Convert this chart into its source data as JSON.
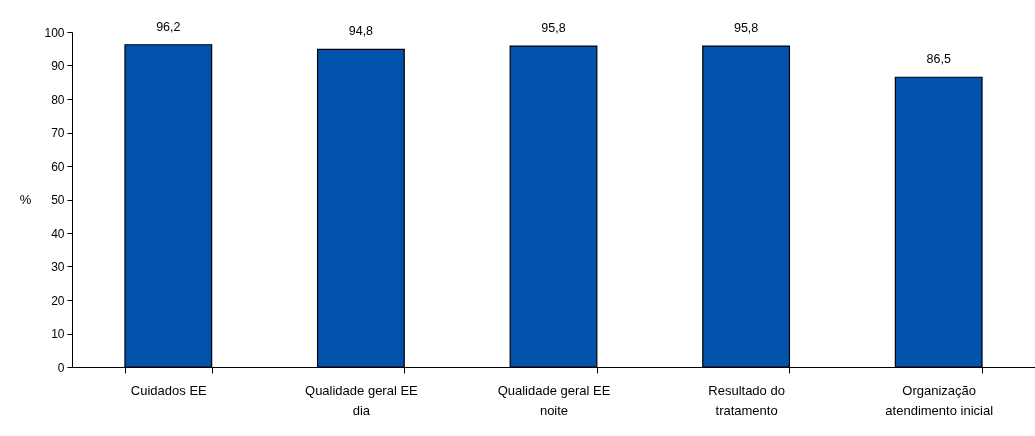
{
  "chart_data": {
    "type": "bar",
    "ylabel": "%",
    "categories": [
      "Cuidados EE",
      "Qualidade geral EE dia",
      "Qualidade geral EE noite",
      "Resultado do tratamento",
      "Organização atendimento inicial"
    ],
    "values": [
      96.2,
      94.8,
      95.8,
      95.8,
      86.5
    ],
    "value_labels": [
      "96,2",
      "94,8",
      "95,8",
      "95,8",
      "86,5"
    ],
    "color": "#0052aa",
    "ylim": [
      0,
      100
    ],
    "yticks": [
      0,
      10,
      20,
      30,
      40,
      50,
      60,
      70,
      80,
      90,
      100
    ],
    "grid": false
  }
}
